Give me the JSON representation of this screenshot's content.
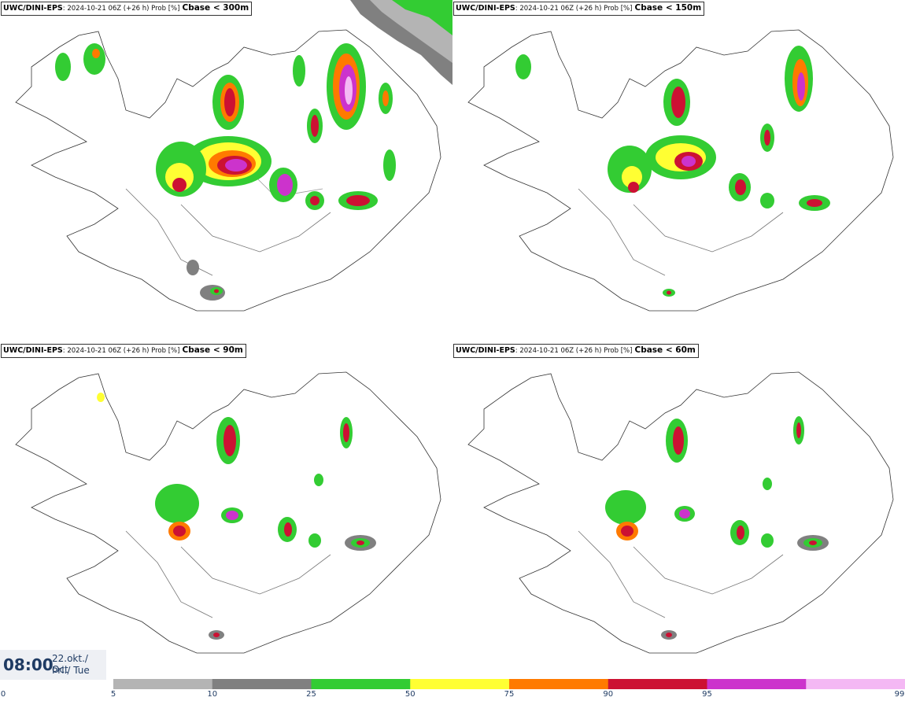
{
  "panels": [
    {
      "model": "UWC/DINI-EPS",
      "run": ": 2024-10-21 06Z (+26 h) Prob [%]",
      "threshold": "Cbase < 300m"
    },
    {
      "model": "UWC/DINI-EPS",
      "run": ": 2024-10-21 06Z (+26 h) Prob [%]",
      "threshold": "Cbase < 150m"
    },
    {
      "model": "UWC/DINI-EPS",
      "run": ": 2024-10-21 06Z (+26 h) Prob [%]",
      "threshold": "Cbase < 90m"
    },
    {
      "model": "UWC/DINI-EPS",
      "run": ": 2024-10-21 06Z (+26 h) Prob [%]",
      "threshold": "Cbase < 60m"
    }
  ],
  "valid": {
    "time": "08:00",
    "date_line1": "22.okt./ Oct",
    "date_line2": "Þri./ Tue"
  },
  "colorbar": {
    "ticks": [
      "0",
      "5",
      "10",
      "25",
      "50",
      "75",
      "90",
      "95",
      "99"
    ],
    "colors": [
      "#b4b4b4",
      "#808080",
      "#33cc33",
      "#ffff33",
      "#ff7a00",
      "#cc1133",
      "#cc33cc",
      "#f4b8f4"
    ]
  }
}
